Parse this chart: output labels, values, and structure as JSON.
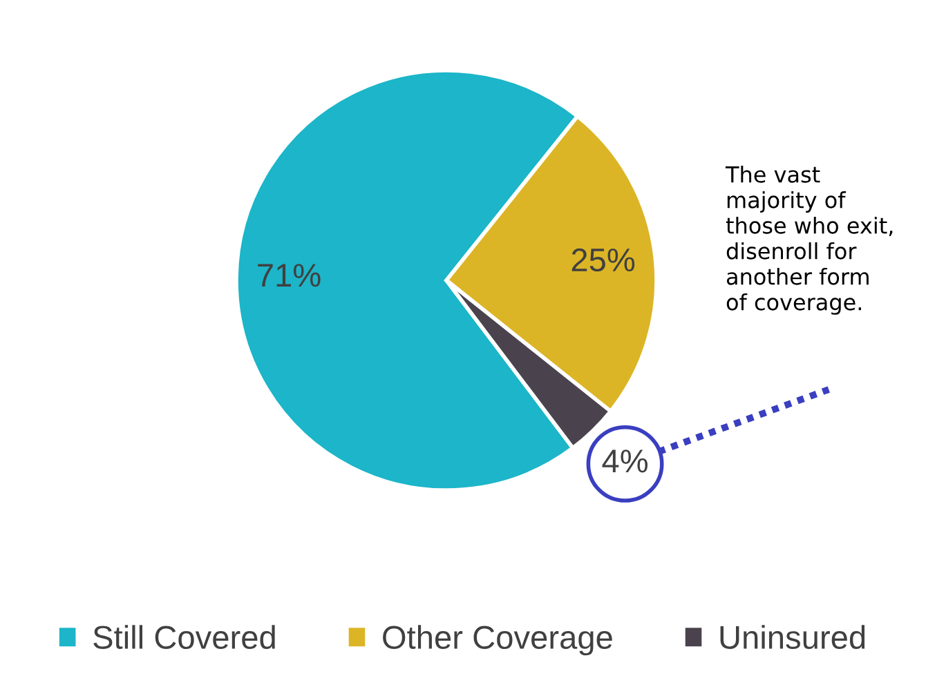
{
  "chart_data": {
    "type": "pie",
    "categories": [
      "Still Covered",
      "Other Coverage",
      "Uninsured"
    ],
    "values": [
      71,
      25,
      4
    ],
    "colors": [
      "#1cb5c9",
      "#dcb526",
      "#4a434e"
    ],
    "value_labels": [
      "71%",
      "25%",
      "4%"
    ],
    "annotations": [
      "The vast\nmajority of\nthose who exit,\ndisenroll for\nanother form\nof coverage."
    ],
    "legend": "bottom"
  }
}
